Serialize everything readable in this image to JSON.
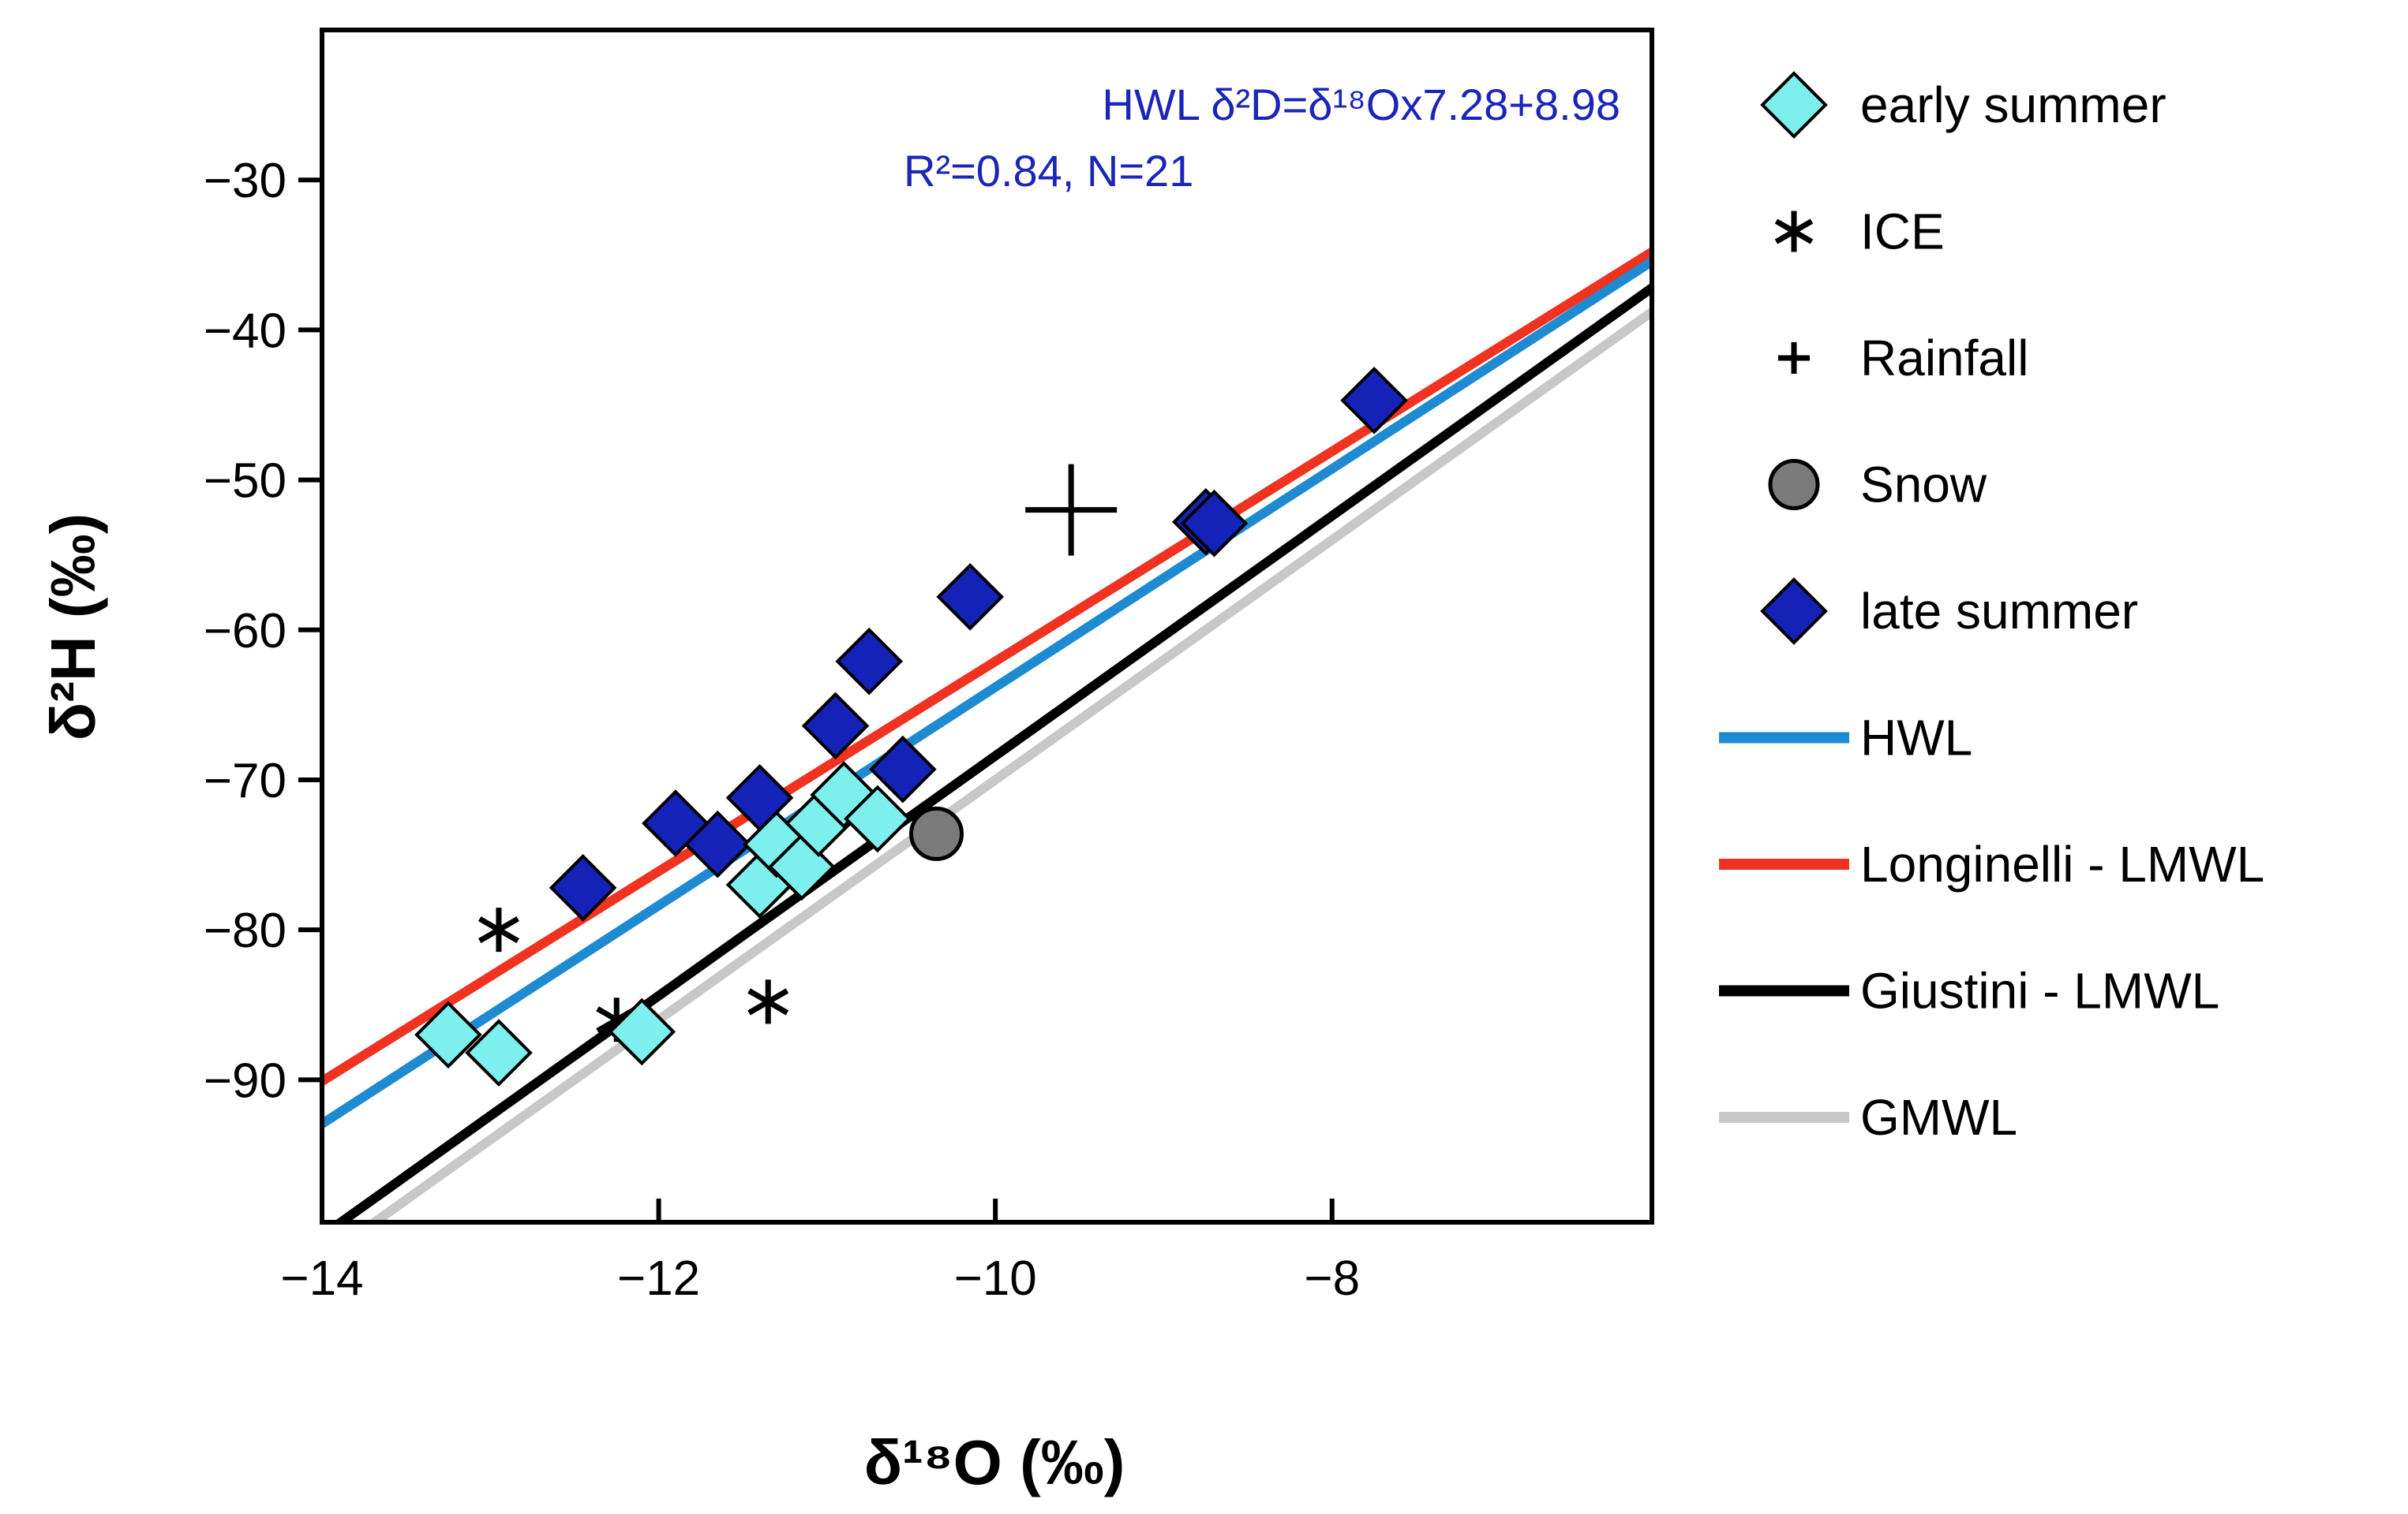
{
  "chart_data": {
    "type": "scatter",
    "xlabel": "δ¹⁸O (‰)",
    "ylabel": "δ²H (‰)",
    "xlim": [
      -14,
      -6.1
    ],
    "ylim": [
      -99.5,
      -20
    ],
    "xticks": [
      -14,
      -12,
      -10,
      -8
    ],
    "yticks": [
      -90,
      -80,
      -70,
      -60,
      -50,
      -40,
      -30
    ],
    "xtick_labels": [
      "−14",
      "−12",
      "−10",
      "−8"
    ],
    "ytick_labels": [
      "−90",
      "−80",
      "−70",
      "−60",
      "−50",
      "−40",
      "−30"
    ],
    "annotation": {
      "line1": "HWL  δ²D=δ¹⁸Ox7.28+8.98",
      "line2": "R²=0.84, N=21"
    },
    "series": [
      {
        "name": "early summer",
        "marker": "diamond",
        "color": "#7df0ee",
        "points": [
          {
            "x": -13.25,
            "y": -87.0
          },
          {
            "x": -12.95,
            "y": -88.2
          },
          {
            "x": -12.1,
            "y": -86.8
          },
          {
            "x": -11.4,
            "y": -77.0
          },
          {
            "x": -11.3,
            "y": -74.3
          },
          {
            "x": -11.15,
            "y": -75.8
          },
          {
            "x": -11.05,
            "y": -72.9
          },
          {
            "x": -10.9,
            "y": -71.0
          },
          {
            "x": -10.7,
            "y": -72.6
          }
        ]
      },
      {
        "name": "ICE",
        "marker": "asterisk",
        "color": "#000000",
        "points": [
          {
            "x": -12.95,
            "y": -80.0
          },
          {
            "x": -12.25,
            "y": -86.0
          },
          {
            "x": -11.35,
            "y": -84.8
          }
        ]
      },
      {
        "name": "Rainfall",
        "marker": "plus",
        "color": "#000000",
        "points": [
          {
            "x": -9.55,
            "y": -52.0
          }
        ]
      },
      {
        "name": "Snow",
        "marker": "circle",
        "color": "#7a7a7a",
        "points": [
          {
            "x": -10.35,
            "y": -73.6
          }
        ]
      },
      {
        "name": "late summer",
        "marker": "diamond",
        "color": "#1422b8",
        "points": [
          {
            "x": -12.45,
            "y": -77.2
          },
          {
            "x": -11.9,
            "y": -72.9
          },
          {
            "x": -11.65,
            "y": -74.3
          },
          {
            "x": -11.4,
            "y": -71.2
          },
          {
            "x": -10.95,
            "y": -66.4
          },
          {
            "x": -10.75,
            "y": -62.1
          },
          {
            "x": -10.55,
            "y": -69.3
          },
          {
            "x": -10.15,
            "y": -57.8
          },
          {
            "x": -8.75,
            "y": -52.8
          },
          {
            "x": -8.7,
            "y": -52.9
          },
          {
            "x": -7.75,
            "y": -44.7
          }
        ]
      }
    ],
    "lines": [
      {
        "name": "HWL",
        "color": "#1e8ad2",
        "slope": 7.28,
        "intercept": 8.98
      },
      {
        "name": "Longinelli - LMWL",
        "color": "#f03220",
        "slope": 7.0,
        "intercept": 7.9
      },
      {
        "name": "Giustini - LMWL",
        "color": "#000000",
        "slope": 8.0,
        "intercept": 11.6
      },
      {
        "name": "GMWL",
        "color": "#c8c8c8",
        "slope": 8.0,
        "intercept": 10.0
      }
    ],
    "legend": {
      "location": "right",
      "entries": [
        "early summer",
        "ICE",
        "Rainfall",
        "Snow",
        "late summer",
        "HWL",
        "Longinelli - LMWL",
        "Giustini - LMWL",
        "GMWL"
      ]
    }
  }
}
